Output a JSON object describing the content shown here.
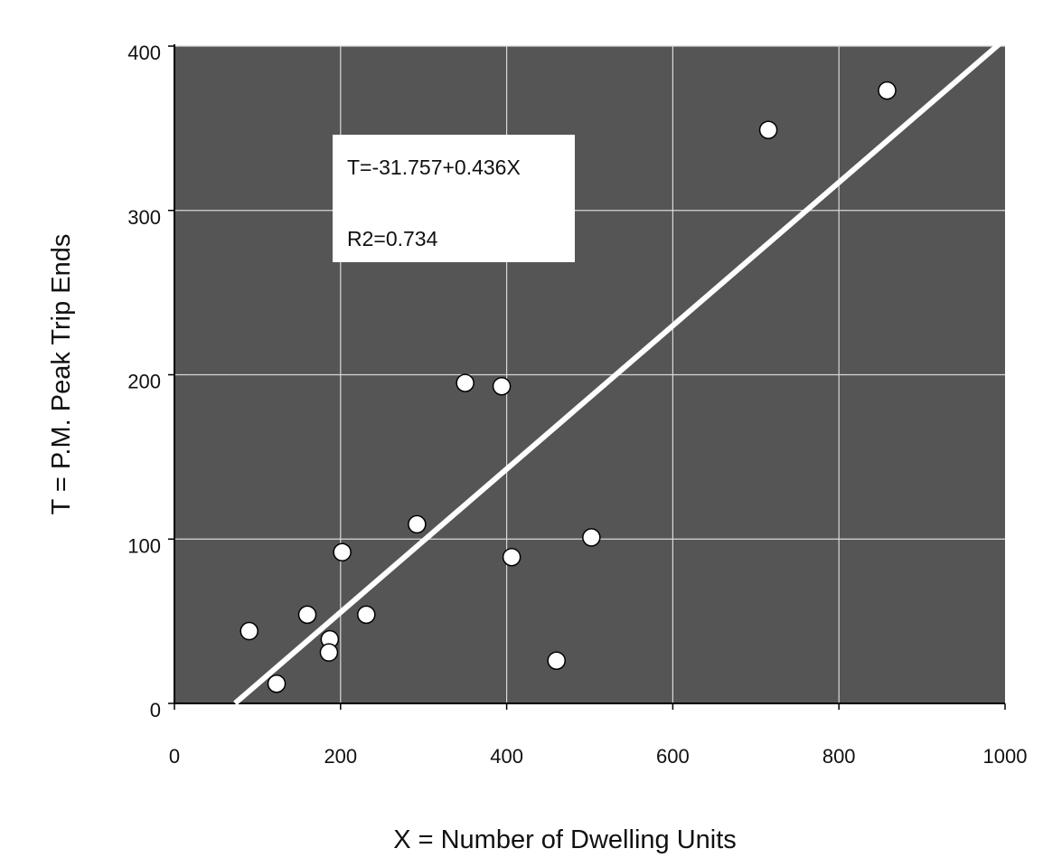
{
  "chart_data": {
    "type": "scatter",
    "xlabel": "X = Number of Dwelling Units",
    "ylabel": "T = P.M. Peak Trip Ends",
    "xlim": [
      0,
      1000
    ],
    "ylim": [
      0,
      400
    ],
    "xticks": [
      0,
      200,
      400,
      600,
      800,
      1000
    ],
    "yticks": [
      0,
      100,
      200,
      300,
      400
    ],
    "grid": true,
    "colors": {
      "plot_background": "#555555",
      "grid": "#d8d8d8",
      "point_fill": "#ffffff",
      "point_stroke": "#000000",
      "fit_line": "#ffffff"
    },
    "series": [
      {
        "points": [
          {
            "x": 90,
            "y": 44
          },
          {
            "x": 123,
            "y": 12
          },
          {
            "x": 160,
            "y": 54
          },
          {
            "x": 187,
            "y": 39
          },
          {
            "x": 186,
            "y": 31
          },
          {
            "x": 202,
            "y": 92
          },
          {
            "x": 231,
            "y": 54
          },
          {
            "x": 292,
            "y": 109
          },
          {
            "x": 350,
            "y": 195
          },
          {
            "x": 394,
            "y": 193
          },
          {
            "x": 406,
            "y": 89
          },
          {
            "x": 460,
            "y": 26
          },
          {
            "x": 502,
            "y": 101
          },
          {
            "x": 715,
            "y": 349
          },
          {
            "x": 858,
            "y": 373
          }
        ]
      }
    ],
    "fit": {
      "intercept": -31.757,
      "slope": 0.436,
      "x_range": [
        73,
        1000
      ]
    },
    "annotation": {
      "equation": "T=-31.757+0.436X",
      "r2": "R2=0.734"
    }
  }
}
